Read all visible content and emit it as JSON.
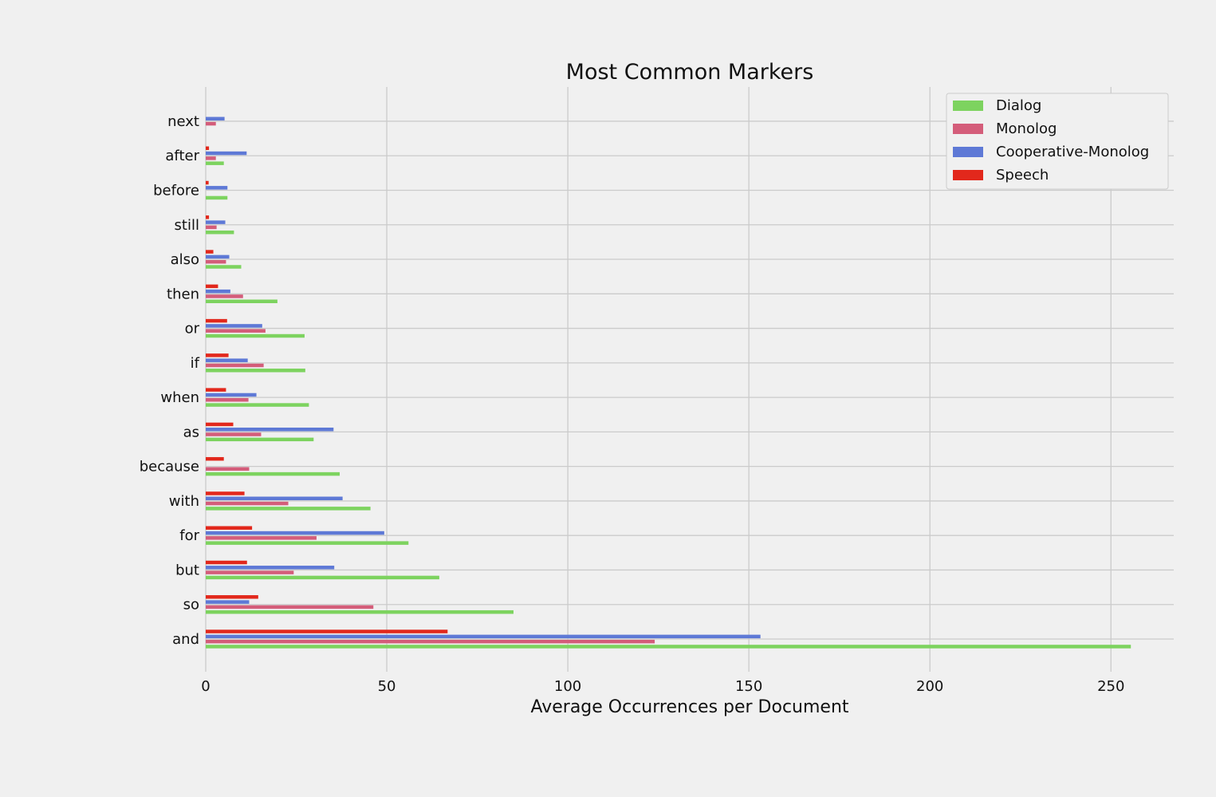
{
  "chart_data": {
    "type": "bar",
    "orientation": "horizontal",
    "title": "Most Common Markers",
    "xlabel": "Average Occurrences per Document",
    "ylabel": "",
    "xlim": [
      0,
      267
    ],
    "xticks": [
      0,
      50,
      100,
      150,
      200,
      250
    ],
    "categories": [
      "and",
      "so",
      "but",
      "for",
      "with",
      "because",
      "as",
      "when",
      "if",
      "or",
      "then",
      "also",
      "still",
      "before",
      "after",
      "next"
    ],
    "series": [
      {
        "name": "Dialog",
        "color": "#7dd35f",
        "values": [
          255.5,
          85,
          64.5,
          56,
          45.5,
          37,
          29.8,
          28.5,
          27.5,
          27.3,
          19.8,
          9.8,
          7.8,
          6.0,
          5.0,
          0
        ]
      },
      {
        "name": "Monolog",
        "color": "#d45d7a",
        "values": [
          124,
          46.3,
          24.3,
          30.6,
          22.8,
          12.0,
          15.3,
          11.8,
          16.0,
          16.5,
          10.3,
          5.6,
          3.0,
          0,
          2.8,
          2.8
        ]
      },
      {
        "name": "Cooperative-Monolog",
        "color": "#5e79d6",
        "values": [
          153.2,
          12.0,
          35.5,
          49.3,
          37.8,
          0,
          35.3,
          14.0,
          11.6,
          15.6,
          6.8,
          6.5,
          5.4,
          6.0,
          11.3,
          5.2
        ]
      },
      {
        "name": "Speech",
        "color": "#e2281c",
        "values": [
          66.8,
          14.5,
          11.4,
          12.8,
          10.7,
          5.0,
          7.6,
          5.6,
          6.3,
          5.9,
          3.4,
          2.1,
          0.9,
          0.8,
          0.9,
          0
        ]
      }
    ],
    "grid": true,
    "legend_position": "top-right"
  }
}
